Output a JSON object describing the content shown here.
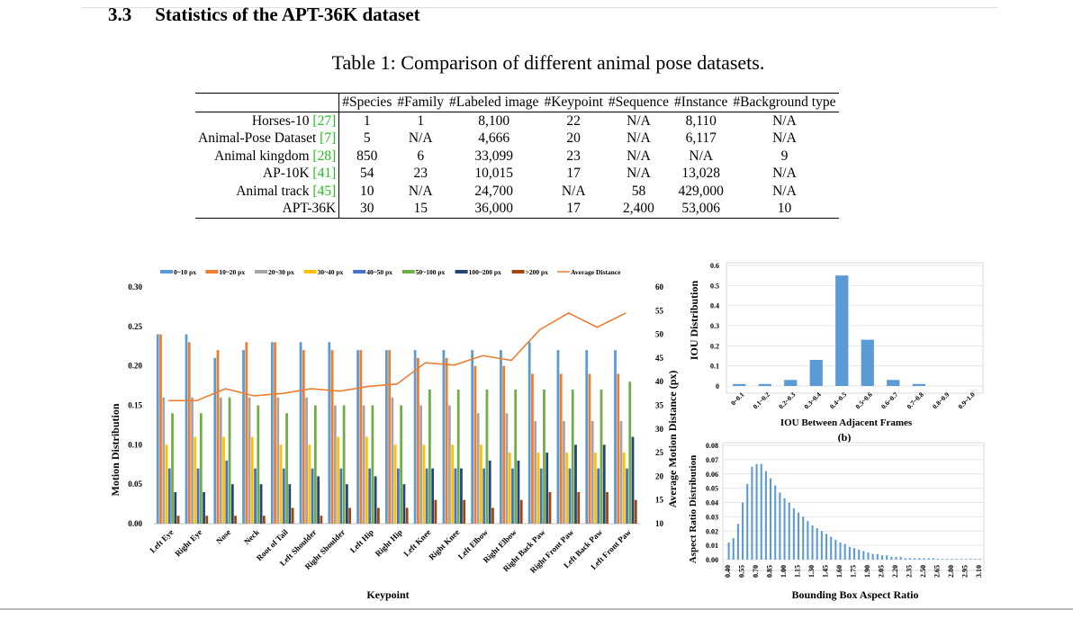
{
  "section": {
    "number": "3.3",
    "title": "Statistics of the APT-36K dataset"
  },
  "table": {
    "caption": "Table 1: Comparison of different animal pose datasets.",
    "headers": [
      "#Species",
      "#Family",
      "#Labeled image",
      "#Keypoint",
      "#Sequence",
      "#Instance",
      "#Background type"
    ],
    "rows": [
      {
        "name": "Horses-10",
        "ref": "[27]",
        "cells": [
          "1",
          "1",
          "8,100",
          "22",
          "N/A",
          "8,110",
          "N/A"
        ]
      },
      {
        "name": "Animal-Pose Dataset",
        "ref": "[7]",
        "cells": [
          "5",
          "N/A",
          "4,666",
          "20",
          "N/A",
          "6,117",
          "N/A"
        ]
      },
      {
        "name": "Animal kingdom",
        "ref": "[28]",
        "cells": [
          "850",
          "6",
          "33,099",
          "23",
          "N/A",
          "N/A",
          "9"
        ]
      },
      {
        "name": "AP-10K",
        "ref": "[41]",
        "cells": [
          "54",
          "23",
          "10,015",
          "17",
          "N/A",
          "13,028",
          "N/A"
        ]
      },
      {
        "name": "Animal track",
        "ref": "[45]",
        "cells": [
          "10",
          "N/A",
          "24,700",
          "N/A",
          "58",
          "429,000",
          "N/A"
        ]
      },
      {
        "name": "APT-36K",
        "ref": "",
        "cells": [
          "30",
          "15",
          "36,000",
          "17",
          "2,400",
          "53,006",
          "10"
        ]
      }
    ]
  },
  "colors": {
    "link_green": "#1fbf1f",
    "bar_blue": "#5b9bd5",
    "line_orange": "#ed7d31"
  },
  "chart_data": [
    {
      "type": "bar",
      "xlabel": "Keypoint",
      "ylabel": "Motion Distribution",
      "y2label": "Average Motion Distance (px)",
      "ylim": [
        0,
        0.3
      ],
      "y2lim": [
        10,
        60
      ],
      "yticks": [
        "0.00",
        "0.05",
        "0.10",
        "0.15",
        "0.20",
        "0.25",
        "0.30"
      ],
      "y2ticks": [
        "10",
        "15",
        "20",
        "25",
        "30",
        "35",
        "40",
        "45",
        "50",
        "55",
        "60"
      ],
      "legend": "top",
      "categories": [
        "Left Eye",
        "Right Eye",
        "Nose",
        "Neck",
        "Root of Tail",
        "Left Shoulder",
        "Right Shoulder",
        "Left Hip",
        "Right Hip",
        "Left Knee",
        "Right Knee",
        "Left Elbow",
        "Right Elbow",
        "Right Back Paw",
        "Right Front Paw",
        "Left Back Paw",
        "Left Front Paw"
      ],
      "series": [
        {
          "name": "0~10 px",
          "color": "#5b9bd5",
          "values": [
            0.24,
            0.24,
            0.21,
            0.22,
            0.23,
            0.23,
            0.23,
            0.22,
            0.22,
            0.22,
            0.22,
            0.22,
            0.22,
            0.23,
            0.22,
            0.22,
            0.22
          ]
        },
        {
          "name": "10~20 px",
          "color": "#ed7d31",
          "values": [
            0.24,
            0.23,
            0.22,
            0.23,
            0.23,
            0.22,
            0.22,
            0.22,
            0.22,
            0.21,
            0.21,
            0.2,
            0.2,
            0.19,
            0.19,
            0.19,
            0.19
          ]
        },
        {
          "name": "20~30 px",
          "color": "#a5a5a5",
          "values": [
            0.16,
            0.16,
            0.16,
            0.16,
            0.16,
            0.16,
            0.15,
            0.15,
            0.16,
            0.15,
            0.15,
            0.14,
            0.14,
            0.13,
            0.13,
            0.13,
            0.13
          ]
        },
        {
          "name": "30~40 px",
          "color": "#ffc000",
          "values": [
            0.1,
            0.11,
            0.11,
            0.11,
            0.1,
            0.1,
            0.11,
            0.11,
            0.1,
            0.1,
            0.1,
            0.1,
            0.09,
            0.09,
            0.09,
            0.09,
            0.09
          ]
        },
        {
          "name": "40~50 px",
          "color": "#4472c4",
          "values": [
            0.07,
            0.07,
            0.08,
            0.07,
            0.07,
            0.07,
            0.07,
            0.07,
            0.07,
            0.07,
            0.07,
            0.07,
            0.07,
            0.07,
            0.07,
            0.07,
            0.07
          ]
        },
        {
          "name": "50~100 px",
          "color": "#70ad47",
          "values": [
            0.14,
            0.14,
            0.16,
            0.15,
            0.14,
            0.15,
            0.15,
            0.15,
            0.15,
            0.17,
            0.17,
            0.17,
            0.17,
            0.17,
            0.17,
            0.17,
            0.18
          ]
        },
        {
          "name": "100~200 px",
          "color": "#264478",
          "values": [
            0.04,
            0.04,
            0.05,
            0.05,
            0.05,
            0.06,
            0.05,
            0.06,
            0.05,
            0.07,
            0.07,
            0.08,
            0.08,
            0.09,
            0.1,
            0.1,
            0.11
          ]
        },
        {
          "name": ">200 px",
          "color": "#9e480e",
          "values": [
            0.01,
            0.01,
            0.01,
            0.01,
            0.02,
            0.01,
            0.02,
            0.02,
            0.02,
            0.03,
            0.03,
            0.02,
            0.03,
            0.04,
            0.04,
            0.04,
            0.03
          ]
        }
      ],
      "line": {
        "name": "Average Distance",
        "color": "#ed7d31",
        "axis": "right",
        "values": [
          36,
          36,
          38.5,
          37,
          37.5,
          38.5,
          38,
          39,
          39.5,
          44,
          43.5,
          45.5,
          44.5,
          51,
          54.5,
          51.5,
          54.5
        ]
      }
    },
    {
      "type": "bar",
      "caption": "(b)",
      "xlabel": "IOU Between Adjacent Frames",
      "ylabel": "IOU Distribution",
      "ylim": [
        0,
        0.6
      ],
      "yticks": [
        "0",
        "0.1",
        "0.2",
        "0.3",
        "0.4",
        "0.5",
        "0.6"
      ],
      "grid": true,
      "categories": [
        "0~0.1",
        "0.1~0.2",
        "0.2~0.3",
        "0.3~0.4",
        "0.4~0.5",
        "0.5~0.6",
        "0.6~0.7",
        "0.7~0.8",
        "0.8~0.9",
        "0.9~1.0"
      ],
      "values": [
        0.01,
        0.01,
        0.03,
        0.13,
        0.55,
        0.23,
        0.03,
        0.01,
        0.0,
        0.0
      ]
    },
    {
      "type": "bar",
      "xlabel": "Bounding Box Aspect Ratio",
      "ylabel": "Aspect Ratio Distribution",
      "ylim": [
        0,
        0.08
      ],
      "yticks": [
        "0.00",
        "0.01",
        "0.02",
        "0.03",
        "0.04",
        "0.05",
        "0.06",
        "0.07",
        "0.08"
      ],
      "grid": true,
      "tick_labels": [
        "0.40",
        "0.55",
        "0.70",
        "0.85",
        "1.00",
        "1.15",
        "1.30",
        "1.45",
        "1.60",
        "1.75",
        "1.90",
        "2.05",
        "2.20",
        "2.35",
        "2.50",
        "2.65",
        "2.80",
        "2.95",
        "3.10"
      ],
      "x_start": 0.4,
      "x_step": 0.05,
      "values": [
        0.012,
        0.015,
        0.025,
        0.04,
        0.053,
        0.065,
        0.067,
        0.067,
        0.062,
        0.057,
        0.052,
        0.047,
        0.043,
        0.04,
        0.036,
        0.033,
        0.03,
        0.027,
        0.024,
        0.022,
        0.02,
        0.018,
        0.016,
        0.014,
        0.012,
        0.011,
        0.009,
        0.008,
        0.007,
        0.006,
        0.005,
        0.004,
        0.004,
        0.003,
        0.003,
        0.002,
        0.002,
        0.002,
        0.001,
        0.001,
        0.001,
        0.001,
        0.001,
        0.001,
        0.001,
        0.0005,
        0.0005,
        0.0005,
        0.0005,
        0.0005,
        0.0005,
        0.0005,
        0.0005,
        0.0005,
        0.0005
      ]
    }
  ]
}
